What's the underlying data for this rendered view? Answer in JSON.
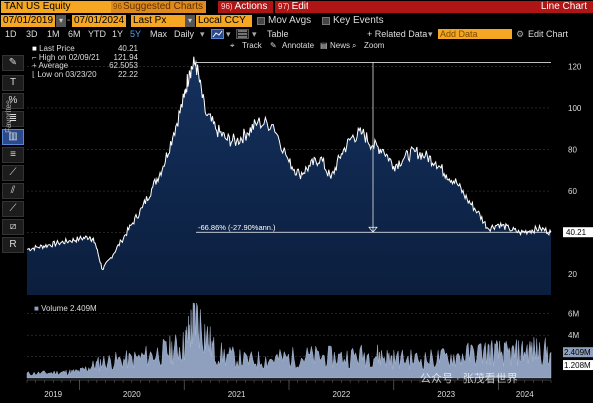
{
  "header": {
    "ticker": "TAN US Equity",
    "suggested_num": "96",
    "suggested": "Suggested Charts",
    "actions_num": "96)",
    "actions": "Actions",
    "edit_num": "97)",
    "edit": "Edit",
    "title": "Line Chart"
  },
  "controls": {
    "start_date": "07/01/2019",
    "end_date": "07/01/2024",
    "price_field": "Last Px",
    "currency": "Local CCY",
    "mov_avgs": "Mov Avgs",
    "key_events": "Key Events"
  },
  "periods": [
    "1D",
    "3D",
    "1M",
    "6M",
    "YTD",
    "1Y",
    "5Y",
    "Max"
  ],
  "active_period": "5Y",
  "frequency": "Daily",
  "toolbar": {
    "table": "Table",
    "related": "+ Related Data",
    "add_data": "Add Data",
    "edit_chart": "Edit Chart",
    "track": "Track",
    "annotate": "Annotate",
    "news": "News",
    "zoom": "Zoom",
    "favorites": "Favorites"
  },
  "legend": {
    "last_label": "Last Price",
    "last_value": "40.21",
    "high_label": "High on 02/09/21",
    "high_value": "121.94",
    "avg_label": "Average",
    "avg_value": "62.5053",
    "low_label": "Low on 03/23/20",
    "low_value": "22.22"
  },
  "volume": {
    "label": "Volume",
    "value": "2.409M",
    "badge_value": "2.409M",
    "avg_badge": "1.208M"
  },
  "annotation": "-66.86% (-27.90%ann.)",
  "watermark": "公众号 · 张茂看世界",
  "chart_data": [
    {
      "type": "area",
      "series": [
        {
          "name": "Last Price",
          "color": "#ffffff"
        }
      ],
      "x": [
        2019.5,
        2019.6,
        2019.7,
        2019.8,
        2019.9,
        2020.0,
        2020.1,
        2020.15,
        2020.22,
        2020.3,
        2020.4,
        2020.5,
        2020.6,
        2020.7,
        2020.8,
        2020.9,
        2021.0,
        2021.05,
        2021.11,
        2021.2,
        2021.3,
        2021.4,
        2021.5,
        2021.6,
        2021.7,
        2021.85,
        2022.0,
        2022.1,
        2022.2,
        2022.3,
        2022.4,
        2022.5,
        2022.6,
        2022.7,
        2022.8,
        2022.9,
        2023.0,
        2023.1,
        2023.2,
        2023.3,
        2023.4,
        2023.5,
        2023.6,
        2023.7,
        2023.8,
        2023.9,
        2024.0,
        2024.1,
        2024.2,
        2024.3,
        2024.4,
        2024.5
      ],
      "y": [
        32,
        33,
        34,
        35,
        36,
        37,
        38,
        35,
        22.22,
        28,
        36,
        44,
        52,
        62,
        72,
        88,
        105,
        118,
        121.94,
        98,
        90,
        85,
        84,
        88,
        93,
        92,
        74,
        68,
        72,
        76,
        66,
        78,
        86,
        88,
        82,
        80,
        72,
        76,
        79,
        77,
        74,
        68,
        64,
        56,
        50,
        42,
        44,
        42,
        40,
        41,
        42,
        40.21
      ],
      "ylim": [
        10,
        125
      ],
      "yticks": [
        20,
        40,
        60,
        80,
        100,
        120
      ],
      "xticks": [
        "2019",
        "2020",
        "2021",
        "2022",
        "2023",
        "2024"
      ],
      "high": 121.94,
      "low": 22.22,
      "last": 40.21
    },
    {
      "type": "bar",
      "series": [
        {
          "name": "Volume",
          "color": "#8fa0bf"
        }
      ],
      "x": [
        2019.5,
        2019.8,
        2020.0,
        2020.22,
        2020.5,
        2020.8,
        2021.0,
        2021.11,
        2021.3,
        2021.6,
        2021.9,
        2022.2,
        2022.5,
        2022.8,
        2023.0,
        2023.3,
        2023.6,
        2023.9,
        2024.1,
        2024.3,
        2024.5
      ],
      "y": [
        0.4,
        0.5,
        0.6,
        1.5,
        1.7,
        2.4,
        3.0,
        5.8,
        2.3,
        1.6,
        1.8,
        2.0,
        1.9,
        2.2,
        1.8,
        1.7,
        2.0,
        2.5,
        2.2,
        2.6,
        2.409
      ],
      "ylim": [
        0,
        7
      ],
      "yticks": [
        2,
        4,
        6
      ],
      "ytick_labels": [
        "",
        "4M",
        "6M"
      ]
    }
  ]
}
